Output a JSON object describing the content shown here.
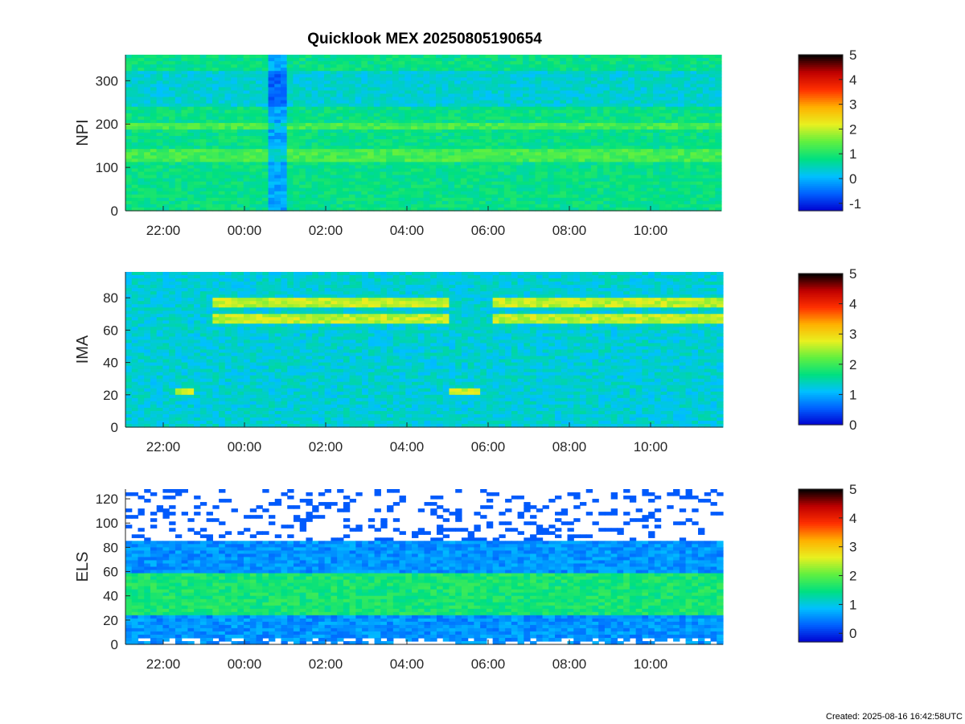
{
  "title": "Quicklook MEX 20250805190654",
  "created": "Created: 2025-08-16 16:42:58UTC",
  "colors": {
    "axis": "#262626",
    "colormap": [
      "#0000d0",
      "#0060ff",
      "#00c0ff",
      "#00e080",
      "#60f040",
      "#e8f020",
      "#ffb000",
      "#ff3000",
      "#c00000",
      "#000000"
    ]
  },
  "chart_data": [
    {
      "type": "heatmap",
      "ylabel": "NPI",
      "ylim": [
        0,
        360
      ],
      "yticks": [
        0,
        100,
        200,
        300
      ],
      "xticks": [
        "22:00",
        "00:00",
        "02:00",
        "04:00",
        "06:00",
        "08:00",
        "10:00"
      ],
      "colorbar": {
        "range": [
          -1.3,
          5
        ],
        "ticks": [
          -1,
          0,
          1,
          2,
          3,
          4,
          5
        ]
      },
      "background_level": 0.8
    },
    {
      "type": "heatmap",
      "ylabel": "IMA",
      "ylim": [
        0,
        96
      ],
      "yticks": [
        0,
        20,
        40,
        60,
        80
      ],
      "xticks": [
        "22:00",
        "00:00",
        "02:00",
        "04:00",
        "06:00",
        "08:00",
        "10:00"
      ],
      "colorbar": {
        "range": [
          0,
          5
        ],
        "ticks": [
          0,
          1,
          2,
          3,
          4,
          5
        ]
      },
      "background_level": 1.3
    },
    {
      "type": "heatmap",
      "ylabel": "ELS",
      "ylim": [
        0,
        128
      ],
      "yticks": [
        0,
        20,
        40,
        60,
        80,
        100,
        120
      ],
      "xticks": [
        "22:00",
        "00:00",
        "02:00",
        "04:00",
        "06:00",
        "08:00",
        "10:00"
      ],
      "colorbar": {
        "range": [
          -0.3,
          5
        ],
        "ticks": [
          0,
          1,
          2,
          3,
          4,
          5
        ]
      },
      "background_level": 0.6
    }
  ]
}
